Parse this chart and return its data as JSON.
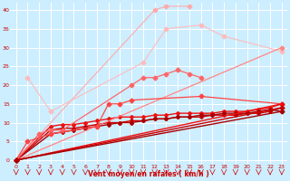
{
  "x": [
    0,
    1,
    2,
    3,
    4,
    5,
    6,
    7,
    8,
    9,
    10,
    11,
    12,
    13,
    14,
    15,
    16,
    17,
    18,
    19,
    20,
    21,
    22,
    23
  ],
  "series": [
    {
      "color": "#ffaaaa",
      "marker": "D",
      "markersize": 2.5,
      "linewidth": 0.8,
      "values": [
        0,
        null,
        null,
        null,
        null,
        null,
        null,
        null,
        null,
        null,
        null,
        null,
        40,
        41,
        null,
        41,
        null,
        null,
        null,
        null,
        null,
        null,
        null,
        null
      ]
    },
    {
      "color": "#ffbbbb",
      "marker": "D",
      "markersize": 2.5,
      "linewidth": 0.8,
      "values": [
        null,
        22,
        null,
        13,
        null,
        null,
        null,
        null,
        null,
        null,
        null,
        26,
        null,
        35,
        null,
        null,
        36,
        null,
        33,
        null,
        null,
        null,
        null,
        29
      ]
    },
    {
      "color": "#ffcccc",
      "marker": "D",
      "markersize": 2.5,
      "linewidth": 0.8,
      "values": [
        0,
        null,
        null,
        null,
        null,
        null,
        null,
        null,
        null,
        null,
        null,
        null,
        null,
        null,
        null,
        null,
        null,
        null,
        null,
        null,
        null,
        null,
        null,
        null
      ]
    },
    {
      "color": "#ff8888",
      "marker": "D",
      "markersize": 2.5,
      "linewidth": 0.8,
      "values": [
        0,
        null,
        null,
        null,
        null,
        null,
        null,
        null,
        null,
        null,
        null,
        null,
        null,
        null,
        null,
        null,
        null,
        null,
        null,
        null,
        null,
        null,
        null,
        30
      ]
    },
    {
      "color": "#ff6666",
      "marker": "D",
      "markersize": 2.5,
      "linewidth": 0.9,
      "values": [
        0,
        null,
        7,
        8,
        8,
        null,
        null,
        null,
        null,
        null,
        20,
        22,
        22,
        23,
        24,
        23,
        22,
        null,
        null,
        null,
        null,
        null,
        null,
        null
      ]
    },
    {
      "color": "#ff4444",
      "marker": "D",
      "markersize": 2.5,
      "linewidth": 0.9,
      "values": [
        0,
        5,
        null,
        7,
        null,
        null,
        null,
        9,
        15,
        15,
        16,
        null,
        null,
        null,
        null,
        null,
        17,
        null,
        null,
        null,
        null,
        null,
        null,
        15
      ]
    },
    {
      "color": "#ee1111",
      "marker": "D",
      "markersize": 2.5,
      "linewidth": 1.0,
      "values": [
        0,
        null,
        null,
        null,
        null,
        null,
        null,
        null,
        null,
        null,
        null,
        null,
        null,
        null,
        null,
        null,
        null,
        null,
        null,
        null,
        null,
        null,
        null,
        15
      ]
    },
    {
      "color": "#cc0000",
      "marker": "D",
      "markersize": 2.5,
      "linewidth": 1.0,
      "values": [
        0,
        null,
        null,
        null,
        null,
        null,
        null,
        null,
        null,
        null,
        null,
        null,
        null,
        null,
        null,
        null,
        null,
        null,
        null,
        null,
        null,
        null,
        null,
        14
      ]
    },
    {
      "color": "#aa0000",
      "marker": "D",
      "markersize": 2.5,
      "linewidth": 1.0,
      "values": [
        0,
        null,
        null,
        null,
        null,
        null,
        null,
        null,
        null,
        null,
        null,
        null,
        null,
        null,
        null,
        null,
        null,
        null,
        null,
        null,
        null,
        null,
        null,
        13
      ]
    }
  ],
  "continuous_series": [
    {
      "color": "#ffbbbb",
      "linewidth": 0.8,
      "x": [
        0,
        23
      ],
      "y": [
        0,
        30
      ]
    },
    {
      "color": "#ee1111",
      "linewidth": 1.0,
      "x": [
        0,
        3,
        4,
        5,
        6,
        7,
        8,
        9,
        10,
        11,
        12,
        13,
        14,
        15,
        16,
        17,
        18,
        19,
        20,
        21,
        22,
        23
      ],
      "y": [
        0,
        9,
        9.5,
        9.5,
        10,
        10.5,
        11,
        11.5,
        11.5,
        11.5,
        12,
        12,
        12.5,
        12.5,
        12.5,
        12.5,
        13,
        13,
        13,
        13.5,
        14,
        15
      ]
    },
    {
      "color": "#cc0000",
      "linewidth": 1.0,
      "x": [
        0,
        3,
        4,
        5,
        6,
        7,
        8,
        9,
        10,
        11,
        12,
        13,
        14,
        15,
        16,
        17,
        18,
        19,
        20,
        21,
        22,
        23
      ],
      "y": [
        0,
        8,
        8.5,
        8.5,
        9,
        9.5,
        10,
        10,
        10.5,
        10.5,
        11,
        11,
        11.5,
        11.5,
        11.5,
        12,
        12,
        12,
        12.5,
        12.5,
        13,
        14
      ]
    },
    {
      "color": "#aa0000",
      "linewidth": 1.0,
      "x": [
        0,
        3,
        4,
        5,
        6,
        7,
        8,
        9,
        10,
        11,
        12,
        13,
        14,
        15,
        16,
        17,
        18,
        19,
        20,
        21,
        22,
        23
      ],
      "y": [
        0,
        7,
        7.5,
        8,
        8.5,
        9,
        9.5,
        10,
        10,
        10.5,
        11,
        11,
        11.5,
        11.5,
        12,
        12,
        12.5,
        12.5,
        12.5,
        13,
        13.5,
        13
      ]
    }
  ],
  "xlabel": "Vent moyen/en rafales ( km/h )",
  "xlim": [
    -0.5,
    23.5
  ],
  "ylim": [
    -1,
    42
  ],
  "yticks": [
    0,
    5,
    10,
    15,
    20,
    25,
    30,
    35,
    40
  ],
  "xticks": [
    0,
    1,
    2,
    3,
    4,
    5,
    6,
    7,
    8,
    9,
    10,
    11,
    12,
    13,
    14,
    15,
    16,
    17,
    18,
    19,
    20,
    21,
    22,
    23
  ],
  "bg_color": "#cceeff",
  "grid_color": "#aadddd",
  "tick_color": "#cc0000",
  "xlabel_color": "#cc0000"
}
